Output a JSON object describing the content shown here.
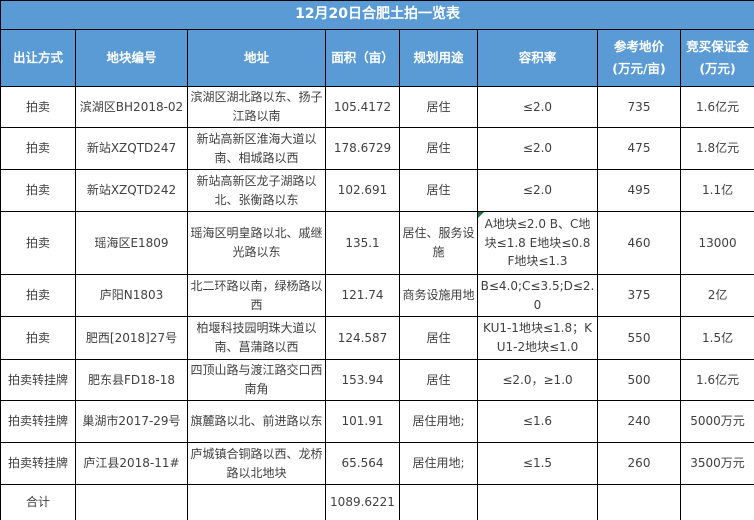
{
  "title": "12月20日合肥土拍一览表",
  "table": {
    "columns": [
      "出让方式",
      "地块编号",
      "地址",
      "面积（亩）",
      "规划用途",
      "容积率",
      "参考地价\n(万元/亩)",
      "竞买保证金\n(万元)"
    ],
    "rows": [
      [
        "拍卖",
        "滨湖区BH2018-02",
        "滨湖区湖北路以东、扬子江路以南",
        "105.4172",
        "居住",
        "≤2.0",
        "735",
        "1.6亿元"
      ],
      [
        "拍卖",
        "新站XZQTD247",
        "新站高新区淮海大道以南、相城路以西",
        "178.6729",
        "居住",
        "≤2.0",
        "475",
        "1.8亿元"
      ],
      [
        "拍卖",
        "新站XZQTD242",
        "新站高新区龙子湖路以北、张衡路以东",
        "102.691",
        "居住",
        "≤2.0",
        "495",
        "1.1亿"
      ],
      [
        "拍卖",
        "瑶海区E1809",
        "瑶海区明皇路以北、戚继光路以东",
        "135.1",
        "居住、服务设施",
        "A地块≤2.0 B、C地块≤1.8 E地块≤0.8 F地块≤1.3",
        "460",
        "13000"
      ],
      [
        "拍卖",
        "庐阳N1803",
        "北二环路以南，绿杨路以西",
        "121.74",
        "商务设施用地",
        "B≤4.0;C≤3.5;D≤2.0",
        "375",
        "2亿"
      ],
      [
        "拍卖",
        "肥西[2018]27号",
        "柏堰科技园明珠大道以南、菖蒲路以西",
        "124.587",
        "居住",
        "KU1-1地块≤1.8；KU1-2地块≤1.0",
        "550",
        "1.5亿"
      ],
      [
        "拍卖转挂牌",
        "肥东县FD18-18",
        "四顶山路与渡江路交口西南角",
        "153.94",
        "居住",
        "≤2.0，≥1.0",
        "500",
        "1.6亿元"
      ],
      [
        "拍卖转挂牌",
        "巢湖市2017-29号",
        "旗麓路以北、前进路以东",
        "101.91",
        "居住用地;",
        "≤1.6",
        "240",
        "5000万元"
      ],
      [
        "拍卖转挂牌",
        "庐江县2018-11#",
        "庐城镇合铜路以西、龙桥路以北地块",
        "65.564",
        "居住用地;",
        "≤1.5",
        "260",
        "3500万元"
      ]
    ],
    "total_row": [
      "合计",
      "",
      "",
      "1089.6221",
      "",
      "",
      "",
      ""
    ],
    "error_marker_cell": {
      "row": 3,
      "col": 5
    }
  },
  "colors": {
    "header_bg": "#5B9BD5",
    "header_text": "#FFFFFF",
    "body_text": "#404040",
    "border": "#000000",
    "marker_green": "#217346"
  }
}
